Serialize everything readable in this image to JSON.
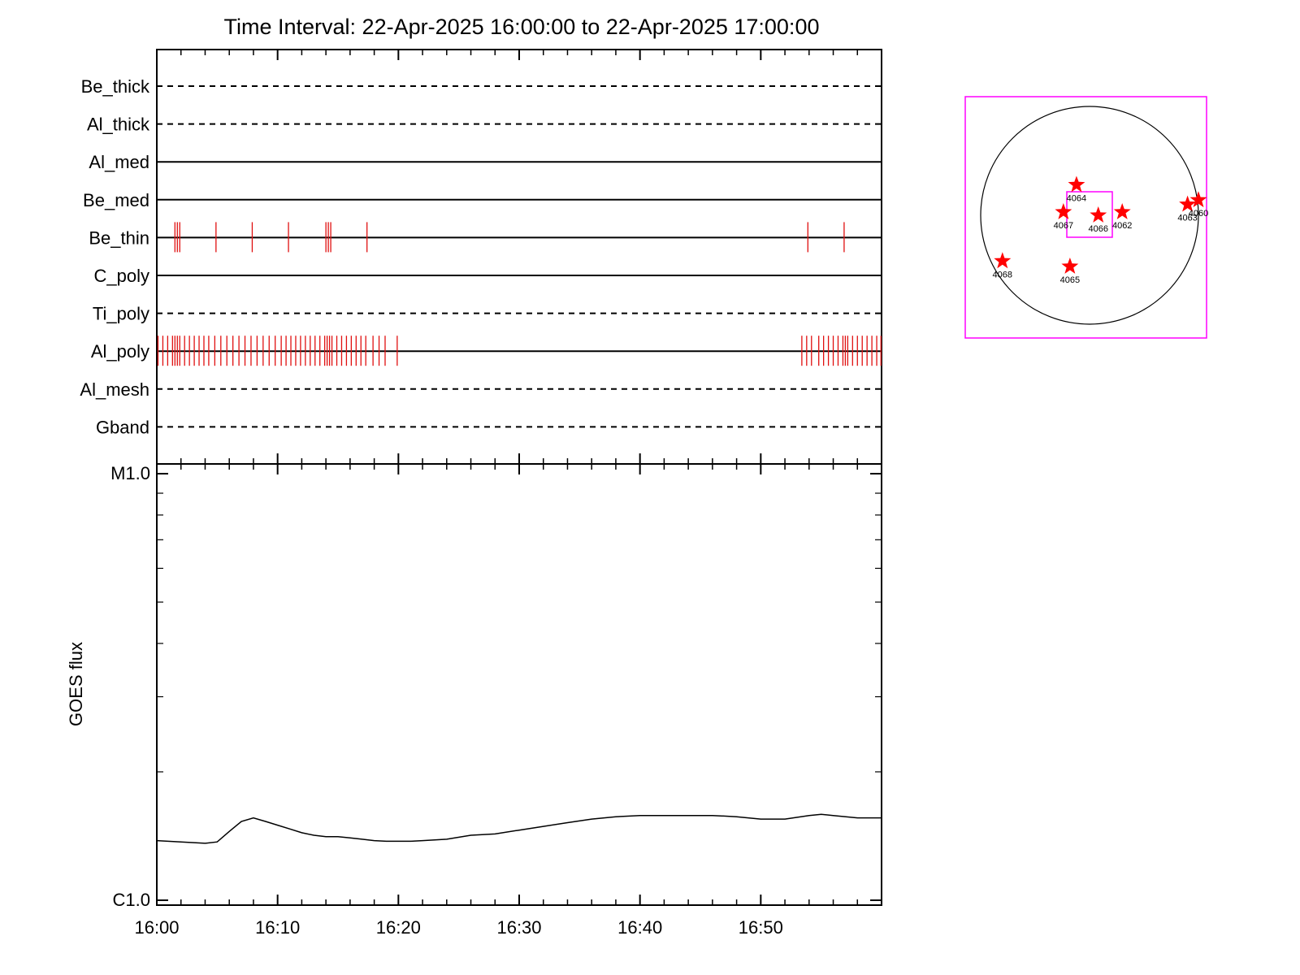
{
  "chart_data": [
    {
      "type": "timeline",
      "title": "Time Interval: 22-Apr-2025 16:00:00 to 22-Apr-2025 17:00:00",
      "x_range": [
        "16:00",
        "17:00"
      ],
      "rows": [
        {
          "name": "Be_thick",
          "style": "dashed",
          "events_min": []
        },
        {
          "name": "Al_thick",
          "style": "dashed",
          "events_min": []
        },
        {
          "name": "Al_med",
          "style": "solid",
          "events_min": []
        },
        {
          "name": "Be_med",
          "style": "solid",
          "events_min": []
        },
        {
          "name": "Be_thin",
          "style": "solid",
          "events_min": [
            1.5,
            1.7,
            1.9,
            4.9,
            7.9,
            10.9,
            14.0,
            14.2,
            14.4,
            17.4,
            53.9,
            56.9
          ]
        },
        {
          "name": "C_poly",
          "style": "solid",
          "events_min": []
        },
        {
          "name": "Ti_poly",
          "style": "dashed",
          "events_min": []
        },
        {
          "name": "Al_poly",
          "style": "solid",
          "events_min": [
            0.1,
            0.5,
            0.9,
            1.3,
            1.5,
            1.7,
            1.9,
            2.3,
            2.7,
            3.1,
            3.5,
            3.9,
            4.3,
            4.8,
            5.3,
            5.8,
            6.3,
            6.8,
            7.3,
            7.8,
            8.3,
            8.8,
            9.3,
            9.8,
            10.3,
            10.7,
            11.1,
            11.5,
            11.9,
            12.3,
            12.7,
            13.1,
            13.5,
            13.9,
            14.1,
            14.3,
            14.5,
            14.9,
            15.3,
            15.7,
            16.1,
            16.5,
            16.9,
            17.3,
            17.9,
            18.4,
            18.9,
            19.9,
            53.4,
            53.8,
            54.2,
            54.8,
            55.2,
            55.6,
            56.0,
            56.4,
            56.8,
            57.0,
            57.2,
            57.6,
            58.0,
            58.4,
            58.8,
            59.2,
            59.6,
            59.95
          ]
        },
        {
          "name": "Al_mesh",
          "style": "dashed",
          "events_min": []
        },
        {
          "name": "Gband",
          "style": "dashed",
          "events_min": []
        }
      ]
    },
    {
      "type": "line",
      "ylabel": "GOES flux",
      "y_scale": "log",
      "y_tick_labels": [
        "M1.0",
        "C1.0"
      ],
      "x_tick_labels": [
        "16:00",
        "16:10",
        "16:20",
        "16:30",
        "16:40",
        "16:50"
      ],
      "x_range_min": [
        0,
        60
      ],
      "series": [
        {
          "x_min": [
            0,
            2,
            4,
            5,
            6,
            7,
            8,
            9,
            10,
            11,
            12,
            13,
            14,
            15,
            16,
            17,
            18,
            19,
            20,
            21,
            22,
            24,
            26,
            28,
            30,
            32,
            34,
            36,
            38,
            40,
            42,
            44,
            46,
            48,
            50,
            52,
            54,
            55,
            56,
            58,
            60
          ],
          "y": [
            1.38,
            1.37,
            1.36,
            1.37,
            1.45,
            1.53,
            1.56,
            1.53,
            1.5,
            1.47,
            1.44,
            1.42,
            1.41,
            1.41,
            1.4,
            1.39,
            1.38,
            1.375,
            1.375,
            1.375,
            1.38,
            1.39,
            1.42,
            1.43,
            1.46,
            1.49,
            1.52,
            1.55,
            1.57,
            1.58,
            1.58,
            1.58,
            1.58,
            1.57,
            1.55,
            1.55,
            1.58,
            1.59,
            1.58,
            1.56,
            1.56
          ]
        }
      ]
    },
    {
      "type": "scatter",
      "title": "",
      "points": [
        {
          "label": "4064",
          "x": -0.12,
          "y": 0.28
        },
        {
          "label": "4067",
          "x": -0.24,
          "y": 0.03
        },
        {
          "label": "4066",
          "x": 0.08,
          "y": 0.0
        },
        {
          "label": "4062",
          "x": 0.3,
          "y": 0.03
        },
        {
          "label": "4063",
          "x": 0.9,
          "y": 0.1
        },
        {
          "label": "4060",
          "x": 1.0,
          "y": 0.14
        },
        {
          "label": "4068",
          "x": -0.8,
          "y": -0.42
        },
        {
          "label": "4065",
          "x": -0.18,
          "y": -0.47
        }
      ]
    }
  ],
  "colors": {
    "event": "#e01010",
    "frame": "#ff00ff",
    "star": "#ff0000"
  }
}
